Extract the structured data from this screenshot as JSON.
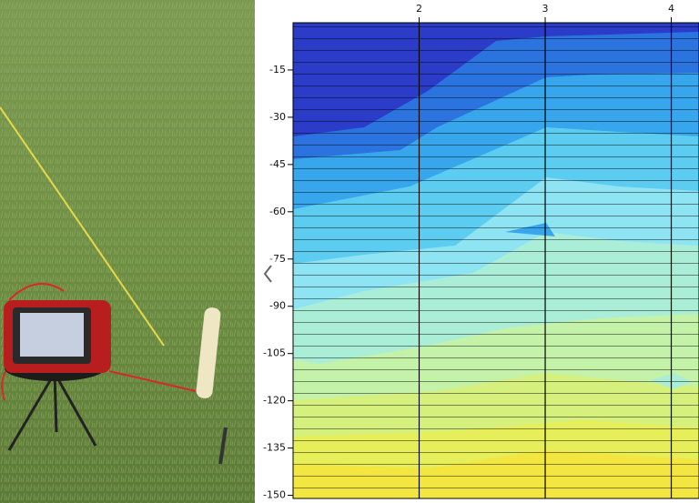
{
  "chart_data": {
    "type": "contour",
    "xticks": [
      2,
      3,
      4
    ],
    "xlim": [
      1,
      4.22
    ],
    "yticks": [
      -15,
      -30,
      -45,
      -60,
      -75,
      -90,
      -105,
      -120,
      -135,
      -150
    ],
    "ylim": [
      -151,
      0
    ],
    "grid": true
  }
}
